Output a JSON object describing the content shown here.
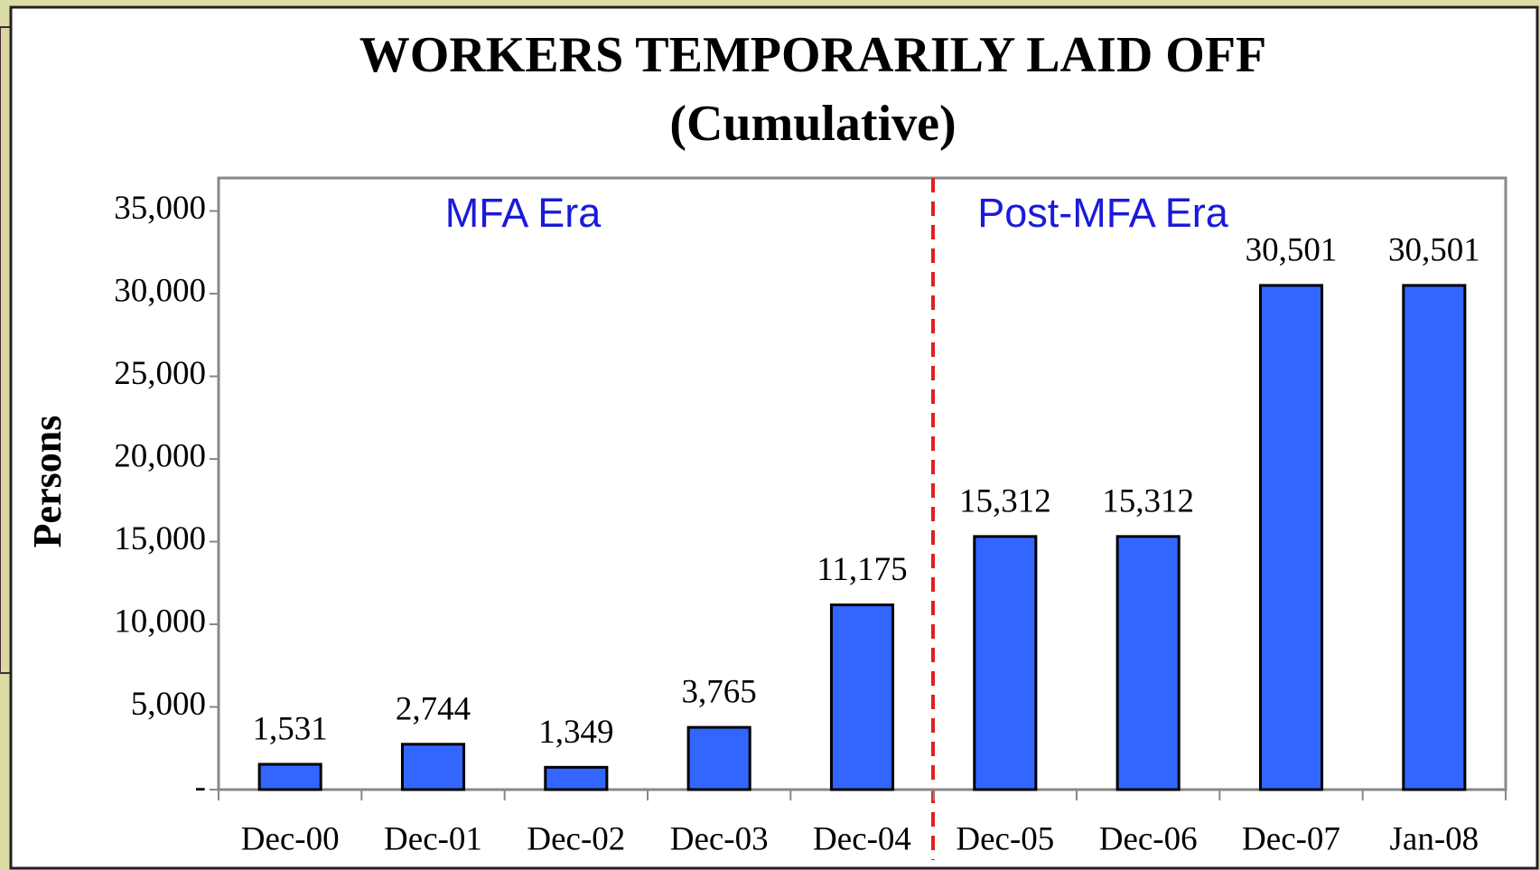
{
  "chart_data": {
    "type": "bar",
    "title": "WORKERS TEMPORARILY LAID OFF",
    "subtitle": "(Cumulative)",
    "y_label": "Persons",
    "annotations": [
      "MFA Era",
      "Post-MFA Era"
    ],
    "categories": [
      "Dec-00",
      "Dec-01",
      "Dec-02",
      "Dec-03",
      "Dec-04",
      "Dec-05",
      "Dec-06",
      "Dec-07",
      "Jan-08"
    ],
    "values": [
      1531,
      2744,
      1349,
      3765,
      11175,
      15312,
      15312,
      30501,
      30501
    ],
    "value_labels": [
      "1,531",
      "2,744",
      "1,349",
      "3,765",
      "11,175",
      "15,312",
      "15,312",
      "30,501",
      "30,501"
    ],
    "color": "#3366ff",
    "ylim": [
      0,
      37000
    ],
    "yticks": [
      {
        "value": 0,
        "label": "-"
      },
      {
        "value": 5000,
        "label": "5,000"
      },
      {
        "value": 10000,
        "label": "10,000"
      },
      {
        "value": 15000,
        "label": "15,000"
      },
      {
        "value": 20000,
        "label": "20,000"
      },
      {
        "value": 25000,
        "label": "25,000"
      },
      {
        "value": 30000,
        "label": "30,000"
      },
      {
        "value": 35000,
        "label": "35,000"
      }
    ],
    "grid": false
  }
}
